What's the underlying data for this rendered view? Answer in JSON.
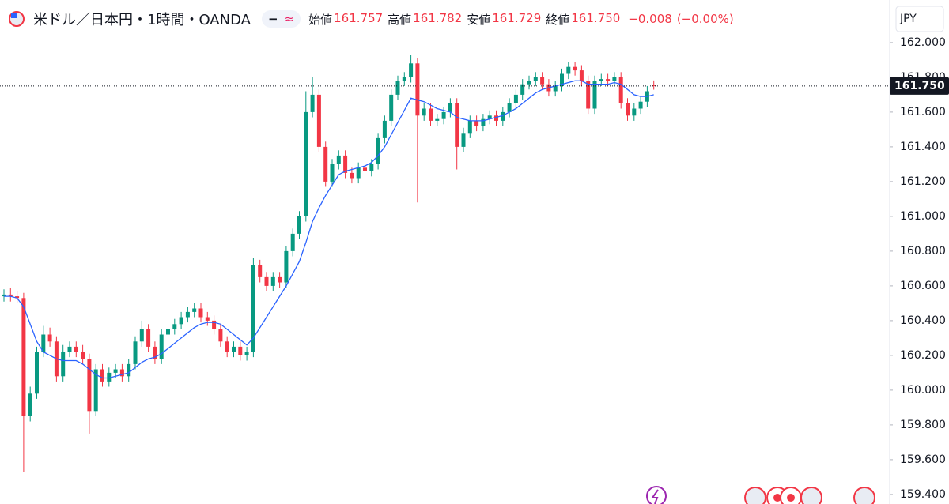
{
  "chart_data": {
    "type": "candlestick",
    "title": "米ドル／日本円・1時間・OANDA",
    "legend_fields": [
      {
        "label": "始値",
        "value": "161.757"
      },
      {
        "label": "高値",
        "value": "161.782"
      },
      {
        "label": "安値",
        "value": "161.729"
      },
      {
        "label": "終値",
        "value": "161.750"
      }
    ],
    "change": "−0.008",
    "change_percent": "(−0.00%)",
    "currency": "JPY",
    "last_price": {
      "value": 161.75,
      "label": "161.750"
    },
    "up_color": "#089981",
    "down_color": "#f23645",
    "open": [
      160.54,
      160.55,
      160.54,
      160.53,
      159.85,
      159.98,
      160.22,
      160.32,
      160.28,
      160.08,
      160.22,
      160.25,
      160.22,
      160.18,
      159.88,
      160.12,
      160.05,
      160.1,
      160.12,
      160.08,
      160.15,
      160.28,
      160.35,
      160.25,
      160.18,
      160.32,
      160.35,
      160.38,
      160.42,
      160.45,
      160.47,
      160.42,
      160.4,
      160.35,
      160.28,
      160.22,
      160.25,
      160.2,
      160.22,
      160.72,
      160.65,
      160.6,
      160.65,
      160.62,
      160.8,
      160.9,
      161.0,
      161.6,
      161.7,
      161.4,
      161.2,
      161.3,
      161.35,
      161.25,
      161.22,
      161.28,
      161.26,
      161.3,
      161.45,
      161.55,
      161.7,
      161.78,
      161.8,
      161.88,
      161.58,
      161.62,
      161.55,
      161.56,
      161.6,
      161.65,
      161.4,
      161.48,
      161.55,
      161.52,
      161.56,
      161.58,
      161.55,
      161.6,
      161.65,
      161.7,
      161.76,
      161.78,
      161.8,
      161.76,
      161.72,
      161.75,
      161.82,
      161.86,
      161.84,
      161.78,
      161.62,
      161.78,
      161.79,
      161.78,
      161.8,
      161.65,
      161.58,
      161.62,
      161.66,
      161.757
    ],
    "high": [
      160.58,
      160.59,
      160.57,
      160.56,
      160.02,
      160.25,
      160.37,
      160.36,
      160.31,
      160.26,
      160.28,
      160.28,
      160.26,
      160.21,
      160.15,
      160.15,
      160.13,
      160.15,
      160.15,
      160.18,
      160.31,
      160.4,
      160.38,
      160.28,
      160.35,
      160.38,
      160.41,
      160.45,
      160.48,
      160.5,
      160.5,
      160.45,
      160.43,
      160.38,
      160.31,
      160.28,
      160.28,
      160.25,
      160.76,
      160.75,
      160.68,
      160.68,
      160.68,
      160.83,
      160.93,
      161.03,
      161.72,
      161.8,
      161.73,
      161.43,
      161.33,
      161.38,
      161.38,
      161.28,
      161.31,
      161.31,
      161.33,
      161.48,
      161.58,
      161.73,
      161.81,
      161.83,
      161.93,
      161.91,
      161.65,
      161.65,
      161.59,
      161.63,
      161.68,
      161.68,
      161.51,
      161.58,
      161.58,
      161.59,
      161.61,
      161.61,
      161.63,
      161.68,
      161.73,
      161.79,
      161.81,
      161.83,
      161.83,
      161.79,
      161.78,
      161.85,
      161.89,
      161.89,
      161.87,
      161.81,
      161.81,
      161.82,
      161.82,
      161.83,
      161.83,
      161.68,
      161.65,
      161.69,
      161.75,
      161.782
    ],
    "low": [
      160.51,
      160.51,
      160.5,
      159.53,
      159.82,
      159.95,
      160.19,
      160.25,
      160.05,
      160.05,
      160.19,
      160.19,
      160.15,
      159.75,
      159.85,
      160.02,
      160.02,
      160.07,
      160.05,
      160.05,
      160.12,
      160.25,
      160.22,
      160.15,
      160.15,
      160.29,
      160.32,
      160.35,
      160.39,
      160.42,
      160.39,
      160.37,
      160.32,
      160.25,
      160.19,
      160.19,
      160.17,
      160.17,
      160.19,
      160.62,
      160.57,
      160.57,
      160.59,
      160.59,
      160.77,
      160.87,
      160.97,
      161.57,
      161.37,
      161.17,
      161.17,
      161.27,
      161.22,
      161.19,
      161.19,
      161.23,
      161.23,
      161.27,
      161.42,
      161.52,
      161.67,
      161.75,
      161.77,
      161.08,
      161.55,
      161.52,
      161.52,
      161.53,
      161.57,
      161.27,
      161.37,
      161.45,
      161.49,
      161.49,
      161.53,
      161.52,
      161.52,
      161.57,
      161.62,
      161.67,
      161.73,
      161.75,
      161.73,
      161.69,
      161.69,
      161.72,
      161.79,
      161.81,
      161.75,
      161.59,
      161.59,
      161.75,
      161.75,
      161.75,
      161.62,
      161.55,
      161.55,
      161.59,
      161.63,
      161.729
    ],
    "close": [
      160.55,
      160.54,
      160.53,
      159.85,
      159.98,
      160.22,
      160.32,
      160.28,
      160.08,
      160.22,
      160.25,
      160.22,
      160.18,
      159.88,
      160.12,
      160.05,
      160.1,
      160.12,
      160.08,
      160.15,
      160.28,
      160.35,
      160.25,
      160.18,
      160.32,
      160.35,
      160.38,
      160.42,
      160.45,
      160.47,
      160.42,
      160.4,
      160.35,
      160.28,
      160.22,
      160.25,
      160.2,
      160.22,
      160.72,
      160.65,
      160.6,
      160.65,
      160.62,
      160.8,
      160.9,
      161.0,
      161.6,
      161.7,
      161.4,
      161.2,
      161.3,
      161.35,
      161.25,
      161.22,
      161.28,
      161.26,
      161.3,
      161.45,
      161.55,
      161.7,
      161.78,
      161.8,
      161.88,
      161.58,
      161.62,
      161.55,
      161.56,
      161.6,
      161.65,
      161.4,
      161.48,
      161.55,
      161.52,
      161.56,
      161.58,
      161.55,
      161.6,
      161.65,
      161.7,
      161.76,
      161.78,
      161.8,
      161.76,
      161.72,
      161.75,
      161.82,
      161.86,
      161.84,
      161.78,
      161.62,
      161.78,
      161.79,
      161.78,
      161.8,
      161.65,
      161.58,
      161.62,
      161.66,
      161.72,
      161.75
    ],
    "series": [
      {
        "color": "#2962ff",
        "values": [
          160.54,
          160.54,
          160.53,
          160.48,
          160.38,
          160.28,
          160.22,
          160.2,
          160.18,
          160.17,
          160.17,
          160.17,
          160.15,
          160.12,
          160.09,
          160.07,
          160.07,
          160.08,
          160.09,
          160.1,
          160.13,
          160.16,
          160.18,
          160.19,
          160.21,
          160.24,
          160.27,
          160.3,
          160.33,
          160.36,
          160.38,
          160.39,
          160.39,
          160.38,
          160.35,
          160.32,
          160.29,
          160.26,
          160.3,
          160.36,
          160.42,
          160.48,
          160.54,
          160.6,
          160.67,
          160.74,
          160.85,
          160.97,
          161.05,
          161.12,
          161.18,
          161.24,
          161.26,
          161.27,
          161.28,
          161.29,
          161.31,
          161.35,
          161.4,
          161.47,
          161.54,
          161.61,
          161.68,
          161.67,
          161.66,
          161.64,
          161.62,
          161.61,
          161.6,
          161.57,
          161.56,
          161.55,
          161.55,
          161.55,
          161.56,
          161.57,
          161.58,
          161.6,
          161.62,
          161.65,
          161.68,
          161.71,
          161.73,
          161.74,
          161.75,
          161.76,
          161.77,
          161.78,
          161.78,
          161.76,
          161.76,
          161.76,
          161.76,
          161.77,
          161.76,
          161.73,
          161.7,
          161.69,
          161.69,
          161.7
        ]
      }
    ],
    "ylim": [
      159.345,
      162.245
    ],
    "yticks": [
      {
        "value": 159.4,
        "label": "159.400"
      },
      {
        "value": 159.6,
        "label": "159.600"
      },
      {
        "value": 159.8,
        "label": "159.800"
      },
      {
        "value": 160.0,
        "label": "160.000"
      },
      {
        "value": 160.2,
        "label": "160.200"
      },
      {
        "value": 160.4,
        "label": "160.400"
      },
      {
        "value": 160.6,
        "label": "160.600"
      },
      {
        "value": 160.8,
        "label": "160.800"
      },
      {
        "value": 161.0,
        "label": "161.000"
      },
      {
        "value": 161.2,
        "label": "161.200"
      },
      {
        "value": 161.4,
        "label": "161.400"
      },
      {
        "value": 161.6,
        "label": "161.600"
      },
      {
        "value": 161.8,
        "label": "161.800"
      },
      {
        "value": 162.0,
        "label": "162.000"
      }
    ]
  }
}
